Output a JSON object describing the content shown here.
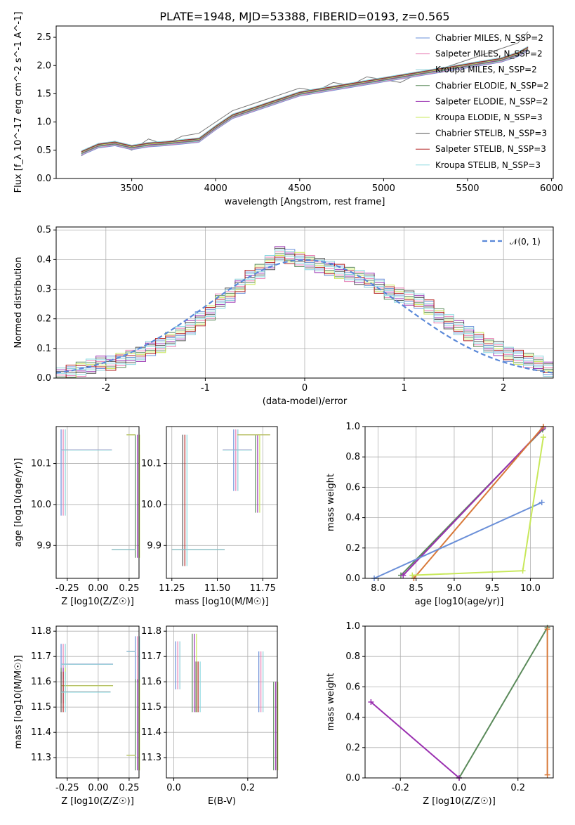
{
  "title": "PLATE=1948, MJD=53388, FIBERID=0193, z=0.565",
  "series_names": [
    "Chabrier MILES, N_SSP=2",
    "Salpeter MILES, N_SSP=2",
    "Kroupa MILES, N_SSP=2",
    "Chabrier ELODIE, N_SSP=2",
    "Salpeter ELODIE, N_SSP=2",
    "Kroupa ELODIE, N_SSP=3",
    "Chabrier STELIB, N_SSP=3",
    "Salpeter STELIB, N_SSP=3",
    "Kroupa STELIB, N_SSP=3"
  ],
  "series_colors": [
    "#6a8fd8",
    "#e87fb4",
    "#8ccfd8",
    "#5a8a5a",
    "#9a30b0",
    "#c8e85a",
    "#555555",
    "#b22020",
    "#88d8e0"
  ],
  "chart_data": [
    {
      "type": "line",
      "name": "spectrum",
      "xlabel": "wavelength [Angstrom, rest frame]",
      "ylabel": "Flux [f_λ 10^-17 erg cm^-2 s^-1 A^-1]",
      "xlim": [
        3050,
        6010
      ],
      "ylim": [
        0,
        2.7
      ],
      "xticks": [
        3500,
        4000,
        4500,
        5000,
        5500,
        6000
      ],
      "yticks": [
        0.0,
        0.5,
        1.0,
        1.5,
        2.0,
        2.5
      ],
      "legend": "upper right",
      "data_x": [
        3200,
        3300,
        3400,
        3500,
        3600,
        3700,
        3800,
        3900,
        4000,
        4100,
        4200,
        4300,
        4400,
        4500,
        4600,
        4700,
        4800,
        4900,
        5000,
        5100,
        5200,
        5300,
        5400,
        5500,
        5600,
        5700,
        5800,
        5860
      ],
      "data_y": [
        0.4,
        0.6,
        0.65,
        0.5,
        0.7,
        0.6,
        0.75,
        0.8,
        1.0,
        1.2,
        1.3,
        1.4,
        1.5,
        1.6,
        1.55,
        1.7,
        1.65,
        1.8,
        1.75,
        1.7,
        1.85,
        1.9,
        2.0,
        2.1,
        2.2,
        2.3,
        2.4,
        2.6
      ],
      "model_x": [
        3200,
        3300,
        3400,
        3500,
        3600,
        3700,
        3800,
        3900,
        4000,
        4100,
        4200,
        4300,
        4400,
        4500,
        4600,
        4700,
        4800,
        4900,
        5000,
        5100,
        5200,
        5300,
        5400,
        5500,
        5600,
        5700,
        5800,
        5860
      ],
      "model_y": [
        0.45,
        0.58,
        0.62,
        0.55,
        0.6,
        0.62,
        0.65,
        0.68,
        0.9,
        1.1,
        1.2,
        1.3,
        1.4,
        1.5,
        1.55,
        1.6,
        1.65,
        1.7,
        1.75,
        1.8,
        1.85,
        1.9,
        1.95,
        2.0,
        2.05,
        2.1,
        2.2,
        2.3
      ]
    },
    {
      "type": "area",
      "name": "residual_histogram",
      "xlabel": "(data-model)/error",
      "ylabel": "Normed distribution",
      "xlim": [
        -2.5,
        2.5
      ],
      "ylim": [
        0,
        0.51
      ],
      "xticks": [
        -2,
        -1,
        0,
        1,
        2
      ],
      "yticks": [
        0.0,
        0.1,
        0.2,
        0.3,
        0.4,
        0.5
      ],
      "legend_label": "𝒩(0, 1)",
      "bin_width": 0.1,
      "hist_start": -2.5,
      "hist_values": [
        0.01,
        0.02,
        0.03,
        0.04,
        0.05,
        0.05,
        0.06,
        0.07,
        0.08,
        0.1,
        0.11,
        0.13,
        0.15,
        0.17,
        0.2,
        0.22,
        0.26,
        0.28,
        0.31,
        0.34,
        0.36,
        0.39,
        0.42,
        0.41,
        0.4,
        0.39,
        0.38,
        0.37,
        0.36,
        0.35,
        0.34,
        0.33,
        0.31,
        0.29,
        0.28,
        0.27,
        0.26,
        0.24,
        0.21,
        0.19,
        0.17,
        0.15,
        0.13,
        0.11,
        0.1,
        0.08,
        0.07,
        0.06,
        0.05,
        0.03
      ]
    },
    {
      "type": "scatter",
      "name": "age_vs_Z",
      "xlabel": "Z [log10(Z/Z☉)]",
      "ylabel": "age [log10(age/yr)]",
      "xlim": [
        -0.34,
        0.33
      ],
      "ylim": [
        9.82,
        10.19
      ],
      "xticks": [
        -0.25,
        0.0,
        0.25
      ],
      "yticks": [
        9.9,
        10.0,
        10.1
      ],
      "points": [
        {
          "x": -0.3,
          "y": 10.133,
          "xerr": [
            0.0,
            0.41
          ],
          "yerr": [
            0.16,
            0.05
          ]
        },
        {
          "x": 0.3,
          "y": 10.17,
          "xerr": [
            0.07,
            0.0
          ],
          "yerr": [
            0.3,
            0.0
          ]
        },
        {
          "x": 0.3,
          "y": 9.89,
          "xerr": [
            0.19,
            0.0
          ],
          "yerr": [
            0.0,
            0.0
          ]
        }
      ]
    },
    {
      "type": "scatter",
      "name": "age_vs_mass",
      "xlabel": "mass [log10(M/M☉)]",
      "ylabel": "",
      "xlim": [
        11.22,
        11.83
      ],
      "ylim": [
        9.82,
        10.19
      ],
      "xticks": [
        11.25,
        11.5,
        11.75
      ],
      "yticks": [
        9.9,
        10.0,
        10.1
      ],
      "points": [
        {
          "x": 11.59,
          "y": 10.133,
          "xerr": [
            0.06,
            0.1
          ],
          "yerr": [
            0.1,
            0.05
          ]
        },
        {
          "x": 11.71,
          "y": 10.17,
          "xerr": [
            0.1,
            0.08
          ],
          "yerr": [
            0.19,
            0.0
          ]
        },
        {
          "x": 11.31,
          "y": 9.89,
          "xerr": [
            0.06,
            0.23
          ],
          "yerr": [
            0.04,
            0.28
          ]
        }
      ]
    },
    {
      "type": "line",
      "name": "massweight_vs_age",
      "xlabel": "age [log10(age/yr)]",
      "ylabel": "mass weight",
      "xlim": [
        7.83,
        10.3
      ],
      "ylim": [
        0,
        1.0
      ],
      "xticks": [
        8.0,
        8.5,
        9.0,
        9.5,
        10.0
      ],
      "yticks": [
        0.0,
        0.2,
        0.4,
        0.6,
        0.8,
        1.0
      ],
      "series": [
        {
          "x": [
            8.3,
            10.16
          ],
          "y": [
            0.02,
            0.98
          ]
        },
        {
          "x": [
            8.33,
            10.17
          ],
          "y": [
            0.02,
            0.99
          ]
        },
        {
          "x": [
            8.47,
            10.17
          ],
          "y": [
            0.0,
            1.0
          ]
        },
        {
          "x": [
            7.95,
            10.15
          ],
          "y": [
            0.0,
            0.5
          ]
        },
        {
          "x": [
            8.45,
            9.9,
            10.17
          ],
          "y": [
            0.02,
            0.05,
            0.93
          ]
        }
      ]
    },
    {
      "type": "scatter",
      "name": "mass_vs_Z",
      "xlabel": "Z [log10(Z/Z☉)]",
      "ylabel": "mass [log10(M/M☉)]",
      "xlim": [
        -0.34,
        0.33
      ],
      "ylim": [
        11.22,
        11.82
      ],
      "xticks": [
        -0.25,
        0.0,
        0.25
      ],
      "yticks": [
        11.3,
        11.4,
        11.5,
        11.6,
        11.7,
        11.8
      ],
      "points": [
        {
          "x": -0.3,
          "y": 11.67,
          "yerr": [
            0.06,
            0.08
          ],
          "xerr": [
            0.0,
            0.42
          ]
        },
        {
          "x": -0.3,
          "y": 11.585,
          "yerr": [
            0.07,
            0.07
          ],
          "xerr": [
            0.0,
            0.42
          ]
        },
        {
          "x": -0.3,
          "y": 11.56,
          "yerr": [
            0.08,
            0.08
          ],
          "xerr": [
            0.0,
            0.4
          ]
        },
        {
          "x": 0.3,
          "y": 11.72,
          "yerr": [
            0.12,
            0.06
          ],
          "xerr": [
            0.07,
            0.0
          ]
        },
        {
          "x": 0.3,
          "y": 11.31,
          "yerr": [
            0.06,
            0.3
          ],
          "xerr": [
            0.07,
            0.0
          ]
        }
      ]
    },
    {
      "type": "scatter",
      "name": "mass_vs_EBV",
      "xlabel": "E(B-V)",
      "ylabel": "",
      "xlim": [
        -0.02,
        0.28
      ],
      "ylim": [
        11.22,
        11.82
      ],
      "xticks": [
        0.0,
        0.2
      ],
      "yticks": [
        11.3,
        11.4,
        11.5,
        11.6,
        11.7,
        11.8
      ],
      "points": [
        {
          "x": 0.005,
          "y": 11.72,
          "yerr": [
            0.15,
            0.04
          ]
        },
        {
          "x": 0.05,
          "y": 11.72,
          "yerr": [
            0.24,
            0.07
          ]
        },
        {
          "x": 0.06,
          "y": 11.62,
          "yerr": [
            0.14,
            0.06
          ]
        },
        {
          "x": 0.23,
          "y": 11.62,
          "yerr": [
            0.14,
            0.1
          ]
        },
        {
          "x": 0.27,
          "y": 11.45,
          "yerr": [
            0.2,
            0.15
          ]
        }
      ]
    },
    {
      "type": "line",
      "name": "massweight_vs_Z",
      "xlabel": "Z [log10(Z/Z☉)]",
      "ylabel": "mass weight",
      "xlim": [
        -0.32,
        0.32
      ],
      "ylim": [
        0,
        1.0
      ],
      "xticks": [
        -0.2,
        0.0,
        0.2
      ],
      "yticks": [
        0.0,
        0.2,
        0.4,
        0.6,
        0.8,
        1.0
      ],
      "series": [
        {
          "x": [
            0.0,
            0.3
          ],
          "y": [
            0.0,
            0.99
          ]
        },
        {
          "x": [
            -0.3,
            0.0
          ],
          "y": [
            0.5,
            0.0
          ]
        },
        {
          "x": [
            0.3,
            0.3
          ],
          "y": [
            0.02,
            0.98
          ]
        }
      ]
    }
  ]
}
